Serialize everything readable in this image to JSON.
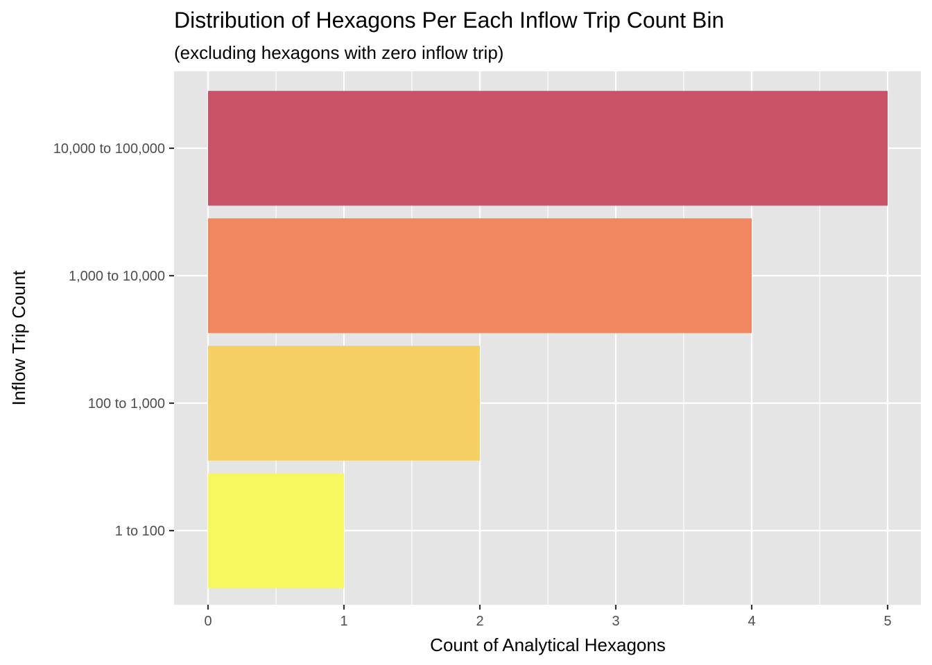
{
  "chart_data": {
    "type": "bar",
    "orientation": "horizontal",
    "title": "Distribution of Hexagons Per Each Inflow Trip Count Bin",
    "subtitle": "(excluding hexagons with zero inflow trip)",
    "xlabel": "Count of Analytical Hexagons",
    "ylabel": "Inflow Trip Count",
    "categories": [
      "1 to 100",
      "100 to 1,000",
      "1,000 to 10,000",
      "10,000 to 100,000"
    ],
    "values": [
      1,
      2,
      4,
      5
    ],
    "colors": [
      "#f7f75f",
      "#f4cf61",
      "#f38762",
      "#ca5267"
    ],
    "xlim": [
      0,
      5
    ],
    "x_ticks": [
      0,
      1,
      2,
      3,
      4,
      5
    ],
    "x_tick_labels": [
      "0",
      "1",
      "2",
      "3",
      "4",
      "5"
    ],
    "grid": true,
    "legend": "none",
    "panel_background": "#e5e5e5",
    "grid_color": "#ffffff"
  }
}
